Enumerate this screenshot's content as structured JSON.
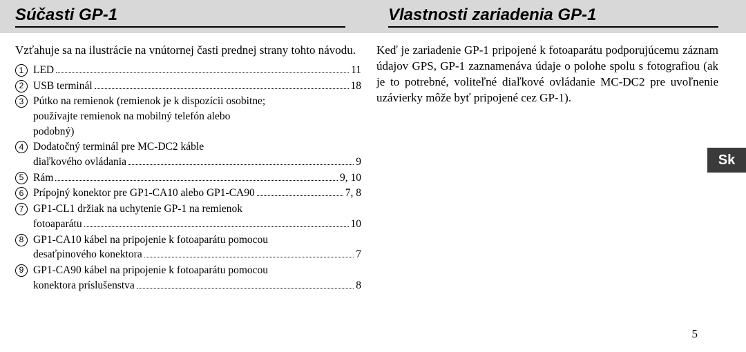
{
  "header": {
    "left_title": "Súčasti GP-1",
    "right_title": "Vlastnosti zariadenia GP-1"
  },
  "left_intro": "Vzťahuje sa na ilustrácie na vnútornej časti prednej strany tohto návodu.",
  "right_text": "Keď je zariadenie GP-1 pripojené k fotoaparátu podporujúcemu záznam údajov GPS, GP-1 zaznamenáva údaje o polohe spolu s fotografiou (ak je to potrebné, voliteľné diaľkové ovládanie MC-DC2 pre uvoľnenie uzávierky môže byť pripojené cez GP-1).",
  "toc": [
    {
      "num": "1",
      "lines": [
        {
          "text": "LED",
          "page": "11"
        }
      ]
    },
    {
      "num": "2",
      "lines": [
        {
          "text": "USB terminál",
          "page": "18"
        }
      ]
    },
    {
      "num": "3",
      "lines": [
        {
          "text": "Pútko na remienok (remienok je k dispozícii osobitne;",
          "page": ""
        },
        {
          "text": "používajte remienok na mobilný telefón alebo",
          "page": ""
        },
        {
          "text": "podobný)",
          "page": ""
        }
      ]
    },
    {
      "num": "4",
      "lines": [
        {
          "text": "Dodatočný terminál pre MC-DC2 káble",
          "page": ""
        },
        {
          "text": "diaľkového ovládania",
          "page": "9"
        }
      ]
    },
    {
      "num": "5",
      "lines": [
        {
          "text": "Rám",
          "page": "9, 10"
        }
      ]
    },
    {
      "num": "6",
      "lines": [
        {
          "text": "Prípojný konektor pre GP1-CA10 alebo GP1-CA90",
          "page": "7, 8"
        }
      ]
    },
    {
      "num": "7",
      "lines": [
        {
          "text": "GP1-CL1 držiak na uchytenie GP-1 na remienok",
          "page": ""
        },
        {
          "text": "fotoaparátu",
          "page": "10"
        }
      ]
    },
    {
      "num": "8",
      "lines": [
        {
          "text": "GP1-CA10 kábel na pripojenie k fotoaparátu pomocou",
          "page": ""
        },
        {
          "text": "desaťpinového konektora",
          "page": "7"
        }
      ]
    },
    {
      "num": "9",
      "lines": [
        {
          "text": "GP1-CA90 kábel na pripojenie k fotoaparátu pomocou",
          "page": ""
        },
        {
          "text": "konektora príslušenstva",
          "page": "8"
        }
      ]
    }
  ],
  "side_tab": "Sk",
  "page_number": "5",
  "colors": {
    "header_bg": "#d8d8d8",
    "tab_bg": "#3a3a3a",
    "text": "#000000"
  }
}
